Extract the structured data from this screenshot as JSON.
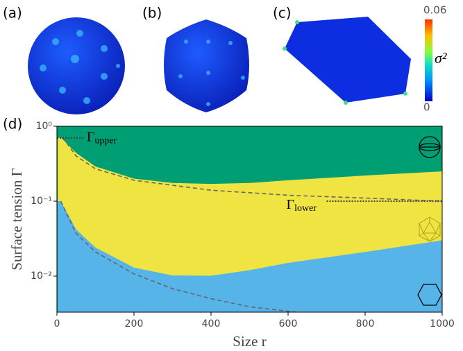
{
  "panels": {
    "a": "(a)",
    "b": "(b)",
    "c": "(c)",
    "d": "(d)"
  },
  "colorbar": {
    "max": "0.06",
    "min": "0",
    "label": "σ²"
  },
  "chart_data": {
    "type": "area",
    "xlabel": "Size r",
    "ylabel": "Surface tension Γ",
    "xlim": [
      0,
      1000
    ],
    "xticks": [
      0,
      200,
      400,
      600,
      800,
      1000
    ],
    "ylim": [
      0.0033,
      1
    ],
    "log_y": true,
    "yticks": [
      {
        "value": 0.01,
        "label": "10⁻²"
      },
      {
        "value": 0.1,
        "label": "10⁻¹"
      },
      {
        "value": 1,
        "label": "10⁰"
      }
    ],
    "background_color": "#009e73",
    "x": [
      2,
      10,
      50,
      100,
      200,
      300,
      400,
      500,
      600,
      800,
      1000
    ],
    "regions": [
      {
        "color": "#f0e442",
        "values": [
          0.7,
          0.71,
          0.44,
          0.29,
          0.2,
          0.175,
          0.17,
          0.175,
          0.19,
          0.22,
          0.25
        ]
      },
      {
        "color": "#56b4e9",
        "values": [
          0.1,
          0.1,
          0.042,
          0.024,
          0.013,
          0.0102,
          0.0101,
          0.012,
          0.015,
          0.021,
          0.03
        ]
      }
    ],
    "dashed": [
      {
        "color": "#666666",
        "x": [
          15,
          50,
          100,
          200,
          400,
          600,
          800,
          1000
        ],
        "values": [
          0.71,
          0.4,
          0.27,
          0.19,
          0.14,
          0.12,
          0.11,
          0.1
        ]
      },
      {
        "color": "#666666",
        "x": [
          10,
          50,
          100,
          200,
          300,
          400,
          500,
          620
        ],
        "values": [
          0.1,
          0.037,
          0.021,
          0.0107,
          0.0068,
          0.005,
          0.0039,
          0.0033
        ]
      }
    ],
    "annotations": [
      {
        "symbol": "Γ",
        "sub": "upper",
        "value": 0.7,
        "x": [
          0,
          70
        ]
      },
      {
        "symbol": "Γ",
        "sub": "lower",
        "value": 0.1,
        "x": [
          700,
          1000
        ]
      }
    ]
  }
}
